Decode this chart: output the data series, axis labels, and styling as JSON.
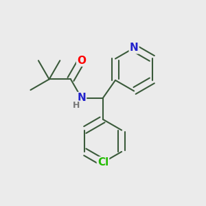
{
  "background_color": "#ebebeb",
  "bond_color": "#3a5a3a",
  "bond_width": 1.5,
  "atom_labels": {
    "O": {
      "color": "#ff0000",
      "fontsize": 11,
      "fontweight": "bold"
    },
    "NH": {
      "color": "#2222cc",
      "fontsize": 11,
      "fontweight": "bold"
    },
    "H": {
      "color": "#777777",
      "fontsize": 9,
      "fontweight": "normal"
    },
    "Cl": {
      "color": "#22bb00",
      "fontsize": 11,
      "fontweight": "bold"
    },
    "N": {
      "color": "#2222cc",
      "fontsize": 11,
      "fontweight": "bold"
    }
  },
  "figsize": [
    3.0,
    3.0
  ],
  "dpi": 100,
  "xlim": [
    0.0,
    1.0
  ],
  "ylim": [
    0.0,
    1.0
  ]
}
